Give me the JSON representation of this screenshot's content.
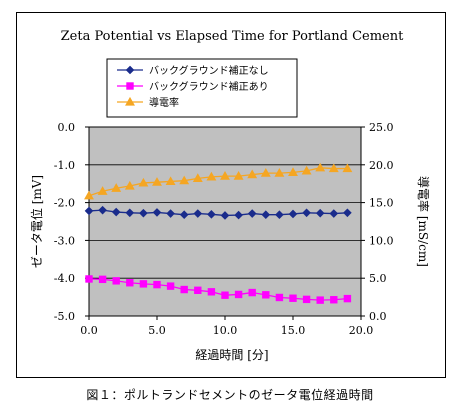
{
  "chart_data": {
    "type": "line",
    "title": "Zeta Potential vs Elapsed Time for Portland Cement",
    "xlabel": "経過時間 [分]",
    "ylabel_left": "ゼータ電位 [mV]",
    "ylabel_right": "導電率 [mS/cm]",
    "xlim": [
      0,
      20
    ],
    "ylim_left": [
      -5,
      0
    ],
    "ylim_right": [
      0,
      25
    ],
    "xticks": [
      "0.0",
      "5.0",
      "10.0",
      "15.0",
      "20.0"
    ],
    "yticks_left": [
      "0.0",
      "-1.0",
      "-2.0",
      "-3.0",
      "-4.0",
      "-5.0"
    ],
    "yticks_right": [
      "25.0",
      "20.0",
      "15.0",
      "10.0",
      "5.0",
      "0.0"
    ],
    "grid": "horizontal",
    "plot_background": "#c0c0c0",
    "legend_position": "top-left",
    "series": [
      {
        "name": "バックグラウンド補正なし",
        "axis": "left",
        "color": "#1a2c8c",
        "marker": "diamond",
        "x": [
          0,
          1,
          2,
          3,
          4,
          5,
          6,
          7,
          8,
          9,
          10,
          11,
          12,
          13,
          14,
          15,
          16,
          17,
          18,
          19
        ],
        "y": [
          -2.22,
          -2.2,
          -2.25,
          -2.27,
          -2.28,
          -2.26,
          -2.29,
          -2.32,
          -2.29,
          -2.31,
          -2.34,
          -2.33,
          -2.29,
          -2.32,
          -2.32,
          -2.3,
          -2.27,
          -2.28,
          -2.29,
          -2.27
        ]
      },
      {
        "name": "バックグラウンド補正あり",
        "axis": "left",
        "color": "#ff00ff",
        "marker": "square",
        "x": [
          0,
          1,
          2,
          3,
          4,
          5,
          6,
          7,
          8,
          9,
          10,
          11,
          12,
          13,
          14,
          15,
          16,
          17,
          18,
          19
        ],
        "y": [
          -4.02,
          -4.03,
          -4.07,
          -4.12,
          -4.15,
          -4.17,
          -4.21,
          -4.3,
          -4.32,
          -4.36,
          -4.45,
          -4.43,
          -4.38,
          -4.44,
          -4.51,
          -4.53,
          -4.56,
          -4.58,
          -4.57,
          -4.54
        ]
      },
      {
        "name": "導電率",
        "axis": "right",
        "color": "#f5a623",
        "marker": "triangle",
        "x": [
          0,
          1,
          2,
          3,
          4,
          5,
          6,
          7,
          8,
          9,
          10,
          11,
          12,
          13,
          14,
          15,
          16,
          17,
          18,
          19
        ],
        "y": [
          15.9,
          16.5,
          16.9,
          17.2,
          17.6,
          17.7,
          17.8,
          17.9,
          18.2,
          18.4,
          18.5,
          18.5,
          18.7,
          18.9,
          18.9,
          19.0,
          19.2,
          19.6,
          19.5,
          19.5
        ]
      }
    ]
  },
  "caption": "図１：ポルトランドセメントのゼータ電位経過時間"
}
